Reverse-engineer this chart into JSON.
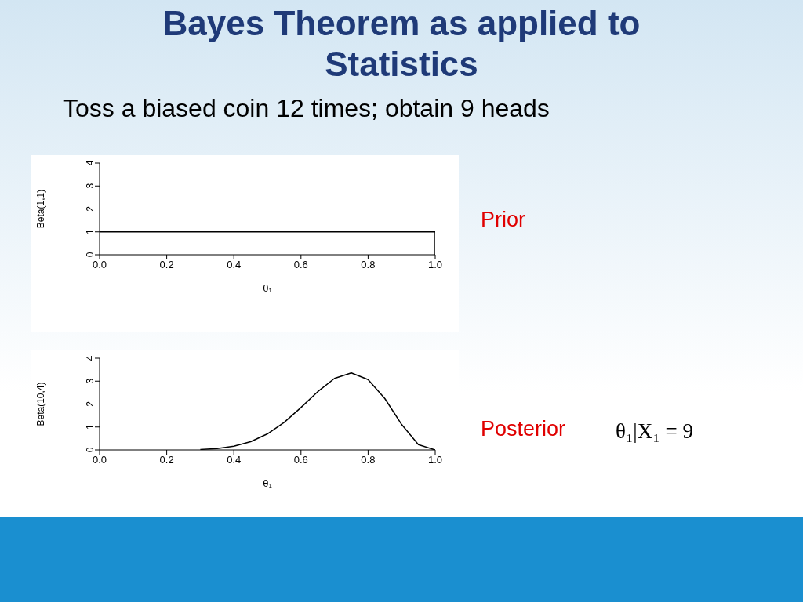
{
  "chart_data": [
    {
      "type": "line",
      "title": "Bayes Theorem as applied to Statistics",
      "subtitle": "Toss a biased coin 12 times; obtain 9 heads",
      "xlabel": "θ₁",
      "ylabel": "Beta(1,1)",
      "xlim": [
        0,
        1
      ],
      "xticks": [
        {
          "value": 0,
          "label": "0.0"
        },
        {
          "value": 0.2,
          "label": "0.2"
        },
        {
          "value": 0.4,
          "label": "0.4"
        },
        {
          "value": 0.6,
          "label": "0.6"
        },
        {
          "value": 0.8,
          "label": "0.8"
        },
        {
          "value": 1,
          "label": "1.0"
        }
      ],
      "ylim": [
        0,
        4
      ],
      "yticks": [
        0,
        1,
        2,
        3,
        4
      ],
      "series": [
        {
          "color": "#000000",
          "x": [
            0,
            0,
            1,
            1
          ],
          "values": [
            0,
            1,
            1,
            0
          ]
        }
      ],
      "annotations": [
        "Prior"
      ]
    },
    {
      "type": "line",
      "xlabel": "θ₁",
      "ylabel": "Beta(10,4)",
      "xlim": [
        0,
        1
      ],
      "xticks": [
        {
          "value": 0,
          "label": "0.0"
        },
        {
          "value": 0.2,
          "label": "0.2"
        },
        {
          "value": 0.4,
          "label": "0.4"
        },
        {
          "value": 0.6,
          "label": "0.6"
        },
        {
          "value": 0.8,
          "label": "0.8"
        },
        {
          "value": 1,
          "label": "1.0"
        }
      ],
      "ylim": [
        0,
        4
      ],
      "yticks": [
        0,
        1,
        2,
        3,
        4
      ],
      "series": [
        {
          "color": "#000000",
          "x": [
            0.3,
            0.35,
            0.4,
            0.45,
            0.5,
            0.55,
            0.6,
            0.65,
            0.7,
            0.75,
            0.8,
            0.85,
            0.9,
            0.95,
            1
          ],
          "values": [
            0.02,
            0.06,
            0.16,
            0.36,
            0.7,
            1.2,
            1.85,
            2.54,
            3.12,
            3.36,
            3.07,
            2.24,
            1.11,
            0.23,
            0
          ]
        }
      ],
      "annotations": [
        "Posterior",
        "θ₁|X₁ = 9"
      ]
    }
  ]
}
